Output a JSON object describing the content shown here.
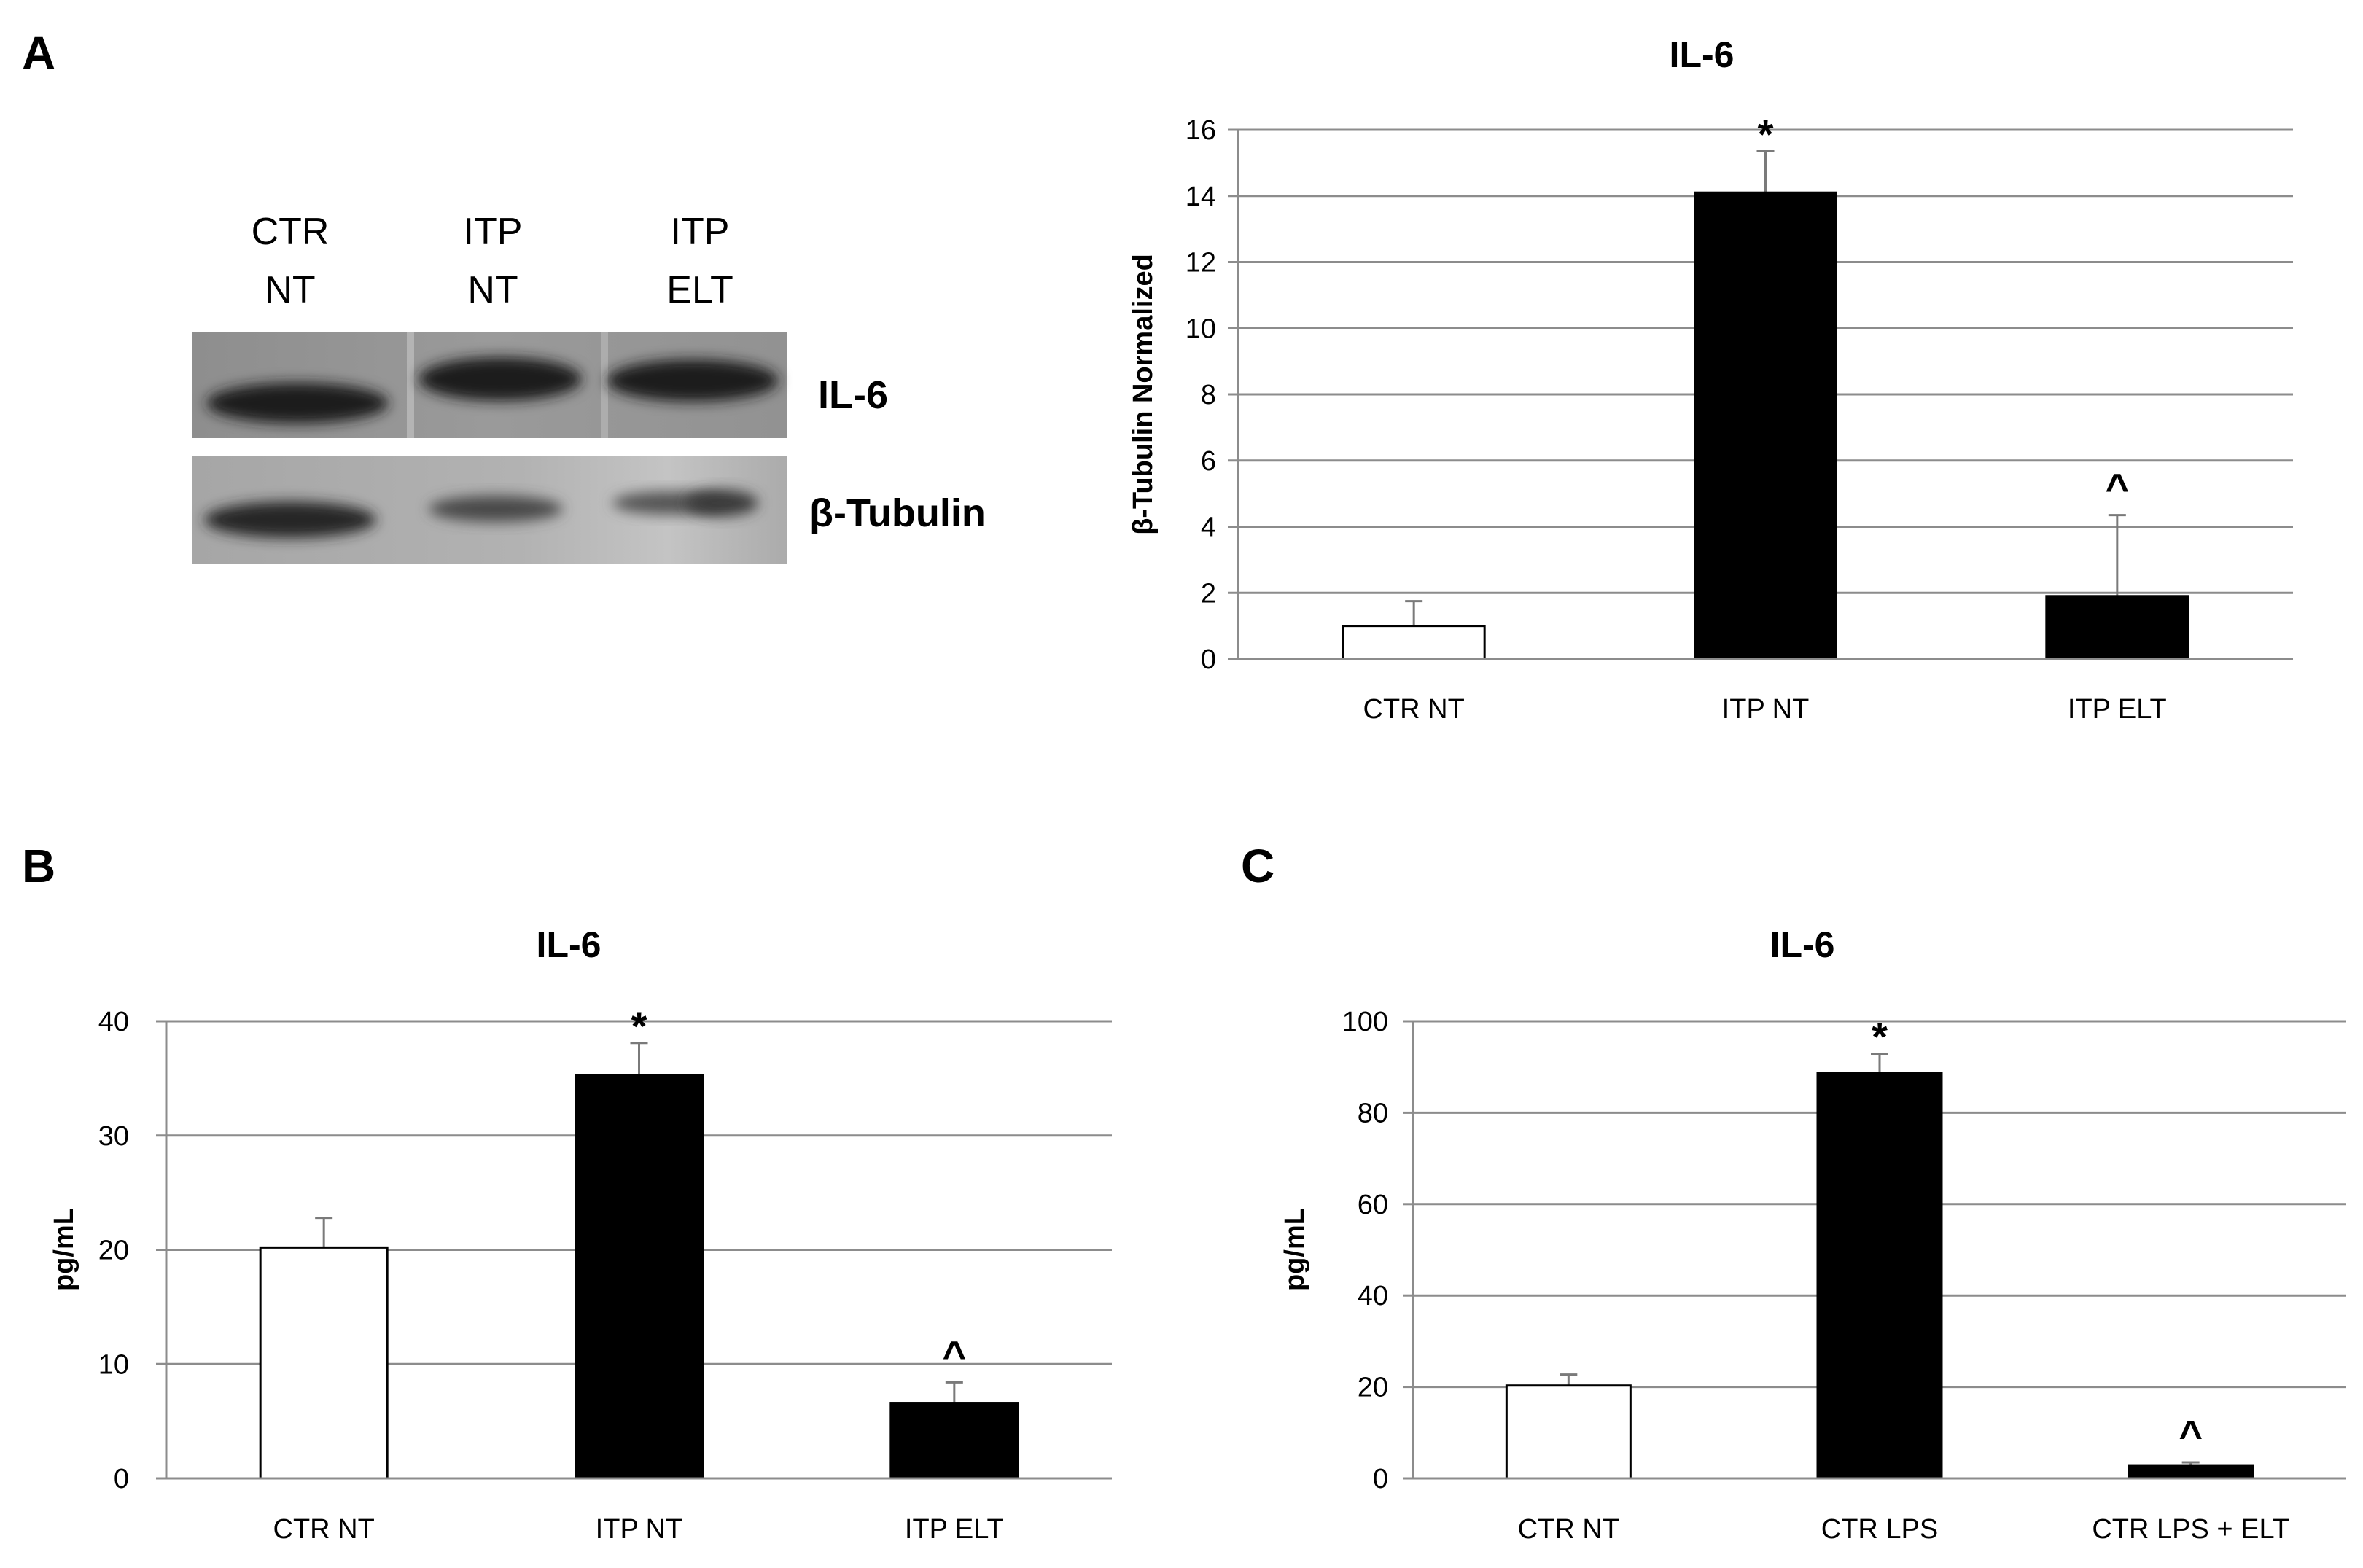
{
  "panels": {
    "a": {
      "letter": "A"
    },
    "b": {
      "letter": "B"
    },
    "c": {
      "letter": "C"
    }
  },
  "blot": {
    "lanes": [
      {
        "line1": "CTR",
        "line2": "NT"
      },
      {
        "line1": "ITP",
        "line2": "NT"
      },
      {
        "line1": "ITP",
        "line2": "ELT"
      }
    ],
    "rows": [
      {
        "label": "IL-6"
      },
      {
        "label": "β-Tubulin"
      }
    ]
  },
  "chart_data": [
    {
      "type": "bar",
      "title": "IL-6",
      "ylabel": "β-Tubulin Normalized",
      "xlabel": "",
      "categories": [
        "CTR NT",
        "ITP NT",
        "ITP ELT"
      ],
      "values": [
        1.0,
        14.1,
        1.9
      ],
      "errors": [
        0.75,
        1.25,
        2.45
      ],
      "bar_colors": [
        "#ffffff",
        "#000000",
        "#000000"
      ],
      "annotations": [
        "",
        "*",
        "^"
      ],
      "ylim": [
        0,
        16
      ],
      "yticks": [
        0,
        2,
        4,
        6,
        8,
        10,
        12,
        14,
        16
      ],
      "grid": true
    },
    {
      "type": "bar",
      "title": "IL-6",
      "ylabel": "pg/mL",
      "xlabel": "",
      "categories": [
        "CTR NT",
        "ITP NT",
        "ITP ELT"
      ],
      "values": [
        20.2,
        35.3,
        6.6
      ],
      "errors": [
        2.6,
        2.8,
        1.8
      ],
      "bar_colors": [
        "#ffffff",
        "#000000",
        "#000000"
      ],
      "annotations": [
        "",
        "*",
        "^"
      ],
      "ylim": [
        0,
        40
      ],
      "yticks": [
        0,
        10,
        20,
        30,
        40
      ],
      "grid": true
    },
    {
      "type": "bar",
      "title": "IL-6",
      "ylabel": "pg/mL",
      "xlabel": "",
      "categories": [
        "CTR NT",
        "CTR LPS",
        "CTR LPS + ELT"
      ],
      "values": [
        20.3,
        88.6,
        2.7
      ],
      "errors": [
        2.4,
        4.3,
        0.8
      ],
      "bar_colors": [
        "#ffffff",
        "#000000",
        "#000000"
      ],
      "annotations": [
        "",
        "*",
        "^"
      ],
      "ylim": [
        0,
        100
      ],
      "yticks": [
        0,
        20,
        40,
        60,
        80,
        100
      ],
      "grid": true
    }
  ]
}
